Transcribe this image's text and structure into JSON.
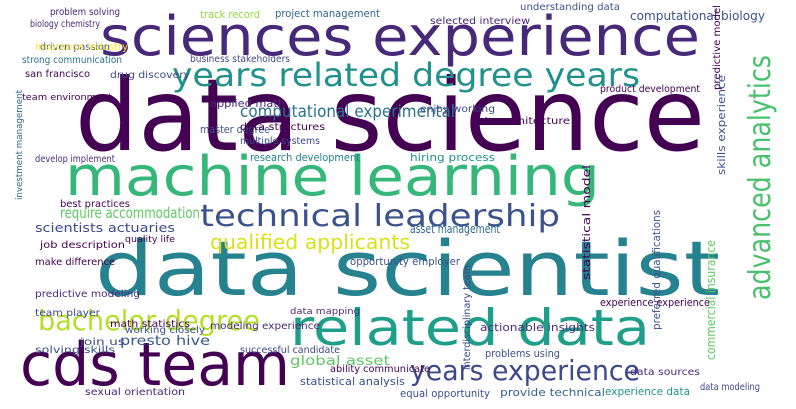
{
  "words": [
    "data science",
    "sciences experience",
    "data scientist",
    "machine learning",
    "related data",
    "cds team",
    "years related degree years",
    "technical leadership",
    "advanced analytics",
    "bachelor degree",
    "years experience",
    "qualified applicants",
    "require accommodation",
    "computational experimental",
    "computational biology",
    "project management",
    "track record",
    "problem solving",
    "biology chemistry",
    "driven passion",
    "strong communication",
    "san francisco",
    "drug discovery",
    "insurance industry",
    "investment management",
    "team environment",
    "applied math",
    "master degree",
    "research development",
    "hiring process",
    "develop implement",
    "best practices",
    "scientists actuaries",
    "asset management",
    "job description",
    "opportunity employer",
    "math statistics",
    "make difference",
    "join us",
    "presto hive",
    "actionable insights",
    "modeling experience",
    "global asset",
    "sexual orientation",
    "statistical analysis",
    "equal opportunity",
    "provide technical",
    "experience data",
    "data sources",
    "data architecture",
    "selected interview",
    "understanding data",
    "business stakeholders",
    "predictive model",
    "preferred qualifications",
    "commercial insurance",
    "team player",
    "quality life",
    "experience experience",
    "problems using",
    "data modeling",
    "working closely",
    "successful candidate",
    "ability communicate",
    "solving skills",
    "predictive modeling",
    "data mapping",
    "multiple systems",
    "data structures",
    "enjoy working",
    "interdisciplinary team",
    "skills experience",
    "product development",
    "statistical model"
  ]
}
